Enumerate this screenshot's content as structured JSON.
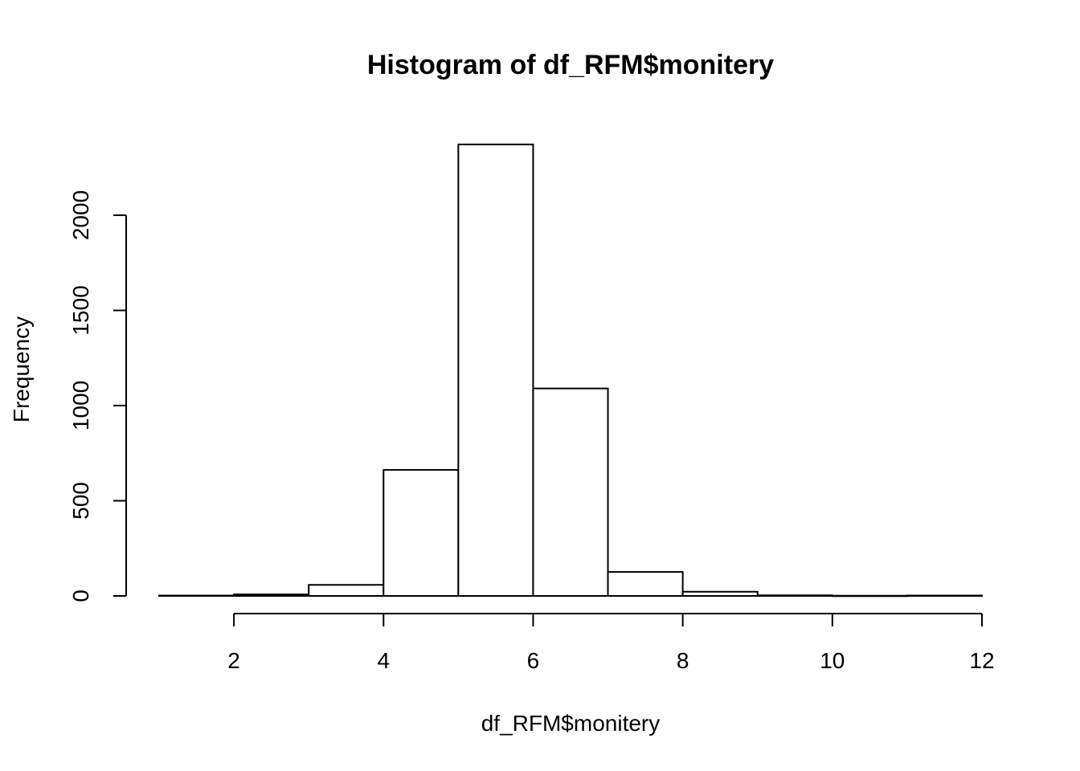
{
  "chart_data": {
    "type": "bar",
    "title": "Histogram of df_RFM$monitery",
    "xlabel": "df_RFM$monitery",
    "ylabel": "Frequency",
    "bins": [
      {
        "x0": 1,
        "x1": 2,
        "count": 2
      },
      {
        "x0": 2,
        "x1": 3,
        "count": 8
      },
      {
        "x0": 3,
        "x1": 4,
        "count": 58
      },
      {
        "x0": 4,
        "x1": 5,
        "count": 662
      },
      {
        "x0": 5,
        "x1": 6,
        "count": 2372
      },
      {
        "x0": 6,
        "x1": 7,
        "count": 1090
      },
      {
        "x0": 7,
        "x1": 8,
        "count": 126
      },
      {
        "x0": 8,
        "x1": 9,
        "count": 22
      },
      {
        "x0": 9,
        "x1": 10,
        "count": 3
      },
      {
        "x0": 10,
        "x1": 11,
        "count": 1
      },
      {
        "x0": 11,
        "x1": 12,
        "count": 2
      }
    ],
    "xticks": [
      2,
      4,
      6,
      8,
      10,
      12
    ],
    "yticks": [
      0,
      500,
      1000,
      1500,
      2000
    ],
    "xlim": [
      1,
      12
    ],
    "ylim": [
      0,
      2372
    ],
    "grid": false,
    "legend": "none",
    "colors": {
      "bar_fill": "#ffffff",
      "bar_stroke": "#000000"
    }
  }
}
